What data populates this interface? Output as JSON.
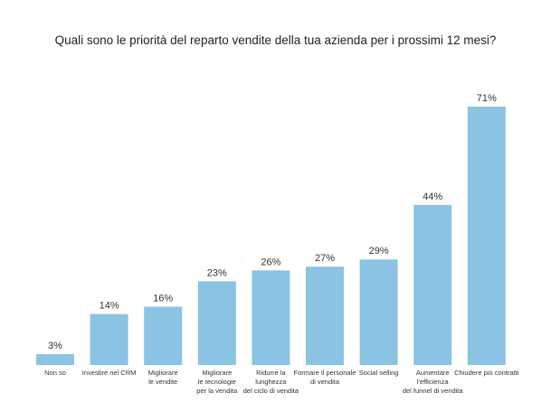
{
  "chart_data": {
    "type": "bar",
    "title": "Quali sono le priorità del reparto vendite della tua azienda per i prossimi 12 mesi?",
    "categories": [
      "Non so",
      "Investire nel CRM",
      "Migliorare\nle vendite",
      "Migliorare\nle tecnologie\nper la vendita",
      "Ridurre la\nlunghezza\ndel ciclo di vendita",
      "Formare il personale\ndi vendita",
      "Social selling",
      "Aumentare\nl'efficienza\ndel funnel di vendita",
      "Chiudere più contratti"
    ],
    "values": [
      3,
      14,
      16,
      23,
      26,
      27,
      29,
      44,
      71
    ],
    "value_labels": [
      "3%",
      "14%",
      "16%",
      "23%",
      "26%",
      "27%",
      "29%",
      "44%",
      "71%"
    ],
    "unit": "%",
    "ylim": [
      0,
      71
    ],
    "grid": false,
    "legend": "none",
    "bar_color": "#8bc3e3"
  }
}
